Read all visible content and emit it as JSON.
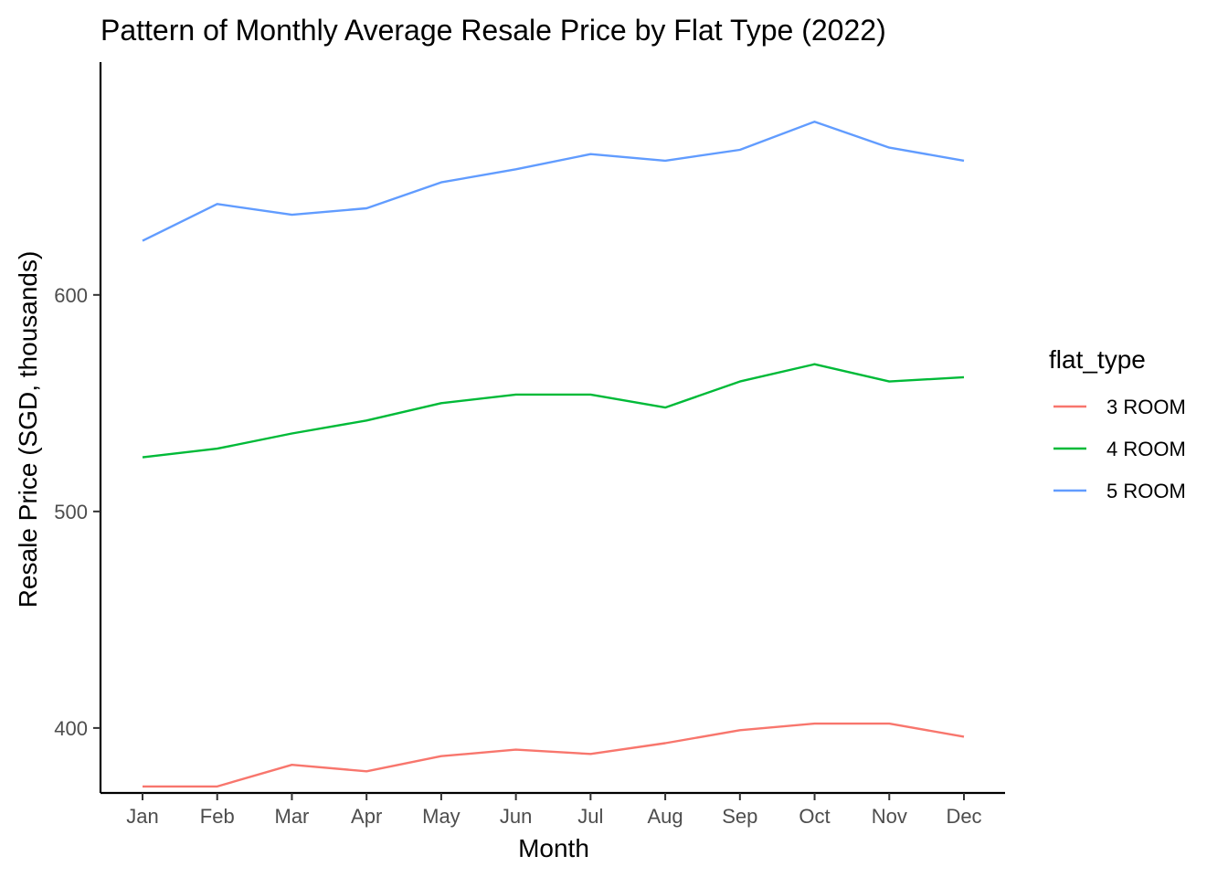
{
  "chart_data": {
    "type": "line",
    "title": "Pattern of Monthly Average Resale Price by Flat Type (2022)",
    "xlabel": "Month",
    "ylabel": "Resale Price (SGD, thousands)",
    "categories": [
      "Jan",
      "Feb",
      "Mar",
      "Apr",
      "May",
      "Jun",
      "Jul",
      "Aug",
      "Sep",
      "Oct",
      "Nov",
      "Dec"
    ],
    "ylim": [
      370,
      680
    ],
    "yticks": [
      400,
      500,
      600
    ],
    "grid": false,
    "legend": {
      "title": "flat_type",
      "position": "right"
    },
    "series": [
      {
        "name": "3 ROOM",
        "color": "#F8766D",
        "values": [
          373,
          373,
          383,
          380,
          387,
          390,
          388,
          393,
          399,
          402,
          402,
          396
        ]
      },
      {
        "name": "4 ROOM",
        "color": "#00BA38",
        "values": [
          525,
          529,
          536,
          542,
          550,
          554,
          554,
          548,
          560,
          568,
          560,
          562
        ]
      },
      {
        "name": "5 ROOM",
        "color": "#619CFF",
        "values": [
          625,
          642,
          637,
          640,
          652,
          658,
          665,
          662,
          667,
          680,
          668,
          662
        ]
      }
    ]
  }
}
